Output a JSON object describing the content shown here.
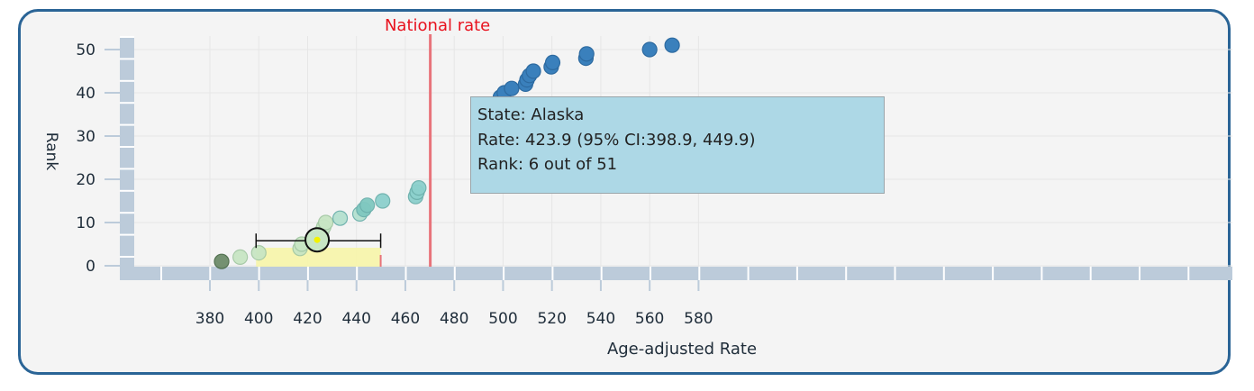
{
  "chart_data": {
    "type": "scatter",
    "xlabel": "Age-adjusted Rate",
    "ylabel": "Rank",
    "xlim": [
      362,
      590
    ],
    "ylim": [
      -3,
      53
    ],
    "xticks": [
      380,
      400,
      420,
      440,
      460,
      480,
      500,
      520,
      540,
      560,
      580
    ],
    "yticks": [
      0,
      10,
      20,
      30,
      40,
      50
    ],
    "reference_line": {
      "label": "National rate",
      "x": 470.2,
      "color": "#e8737a"
    },
    "highlight": {
      "state": "Alaska",
      "rate": 423.9,
      "ci_low": 398.9,
      "ci_high": 449.9,
      "rank": 6,
      "total": 51
    },
    "points": [
      {
        "x": 384.8,
        "y": 1
      },
      {
        "x": 392.4,
        "y": 2
      },
      {
        "x": 400.0,
        "y": 3
      },
      {
        "x": 416.9,
        "y": 4
      },
      {
        "x": 417.6,
        "y": 5
      },
      {
        "x": 423.9,
        "y": 6
      },
      {
        "x": 424.7,
        "y": 7
      },
      {
        "x": 425.8,
        "y": 8
      },
      {
        "x": 426.6,
        "y": 9
      },
      {
        "x": 427.4,
        "y": 10
      },
      {
        "x": 433.3,
        "y": 11
      },
      {
        "x": 441.4,
        "y": 12
      },
      {
        "x": 443.0,
        "y": 13
      },
      {
        "x": 444.4,
        "y": 14
      },
      {
        "x": 450.7,
        "y": 15
      },
      {
        "x": 464.2,
        "y": 16
      },
      {
        "x": 464.8,
        "y": 17
      },
      {
        "x": 465.5,
        "y": 18
      },
      {
        "x": 498.9,
        "y": 39
      },
      {
        "x": 500.5,
        "y": 40
      },
      {
        "x": 503.5,
        "y": 41
      },
      {
        "x": 509.2,
        "y": 42
      },
      {
        "x": 509.8,
        "y": 43
      },
      {
        "x": 510.8,
        "y": 44
      },
      {
        "x": 512.4,
        "y": 45
      },
      {
        "x": 519.7,
        "y": 46
      },
      {
        "x": 520.3,
        "y": 47
      },
      {
        "x": 533.9,
        "y": 48
      },
      {
        "x": 534.2,
        "y": 49
      },
      {
        "x": 560.0,
        "y": 50
      },
      {
        "x": 569.2,
        "y": 51
      }
    ]
  },
  "tooltip": {
    "line1": "State: Alaska",
    "line2": "Rate: 423.9 (95% CI:398.9, 449.9)",
    "line3": "Rank: 6 out of 51"
  }
}
